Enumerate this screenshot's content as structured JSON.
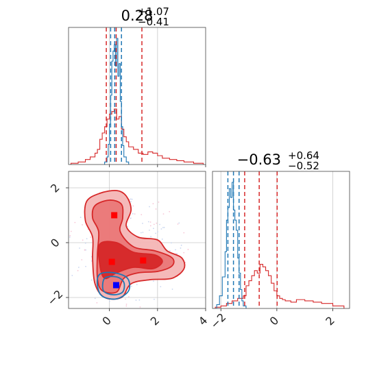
{
  "chart_data": [
    {
      "type": "histogram",
      "panel": "top-left",
      "title": {
        "value": "0.28",
        "plus": "+1.07",
        "minus": "−0.41"
      },
      "xlim": [
        -1.7,
        4.0
      ],
      "quantile_lines_red": [
        -0.13,
        0.28,
        1.35
      ],
      "quantile_lines_blue": [
        0.05,
        0.22,
        0.5
      ],
      "series": [
        {
          "color": "#d62728",
          "x_edges": [
            -1.6,
            -1.3,
            -1.0,
            -0.8,
            -0.6,
            -0.5,
            -0.4,
            -0.3,
            -0.2,
            -0.1,
            0.0,
            0.1,
            0.2,
            0.3,
            0.4,
            0.5,
            0.6,
            0.7,
            0.8,
            1.0,
            1.2,
            1.4,
            1.6,
            1.8,
            2.0,
            2.2,
            2.5,
            2.8,
            3.1,
            3.5,
            3.9
          ],
          "values": [
            0.01,
            0.02,
            0.04,
            0.06,
            0.09,
            0.12,
            0.2,
            0.25,
            0.3,
            0.36,
            0.4,
            0.42,
            0.44,
            0.36,
            0.38,
            0.28,
            0.22,
            0.18,
            0.14,
            0.12,
            0.09,
            0.08,
            0.1,
            0.09,
            0.07,
            0.05,
            0.04,
            0.03,
            0.02,
            0.01
          ]
        },
        {
          "color": "#1f77b4",
          "x_edges": [
            -0.2,
            -0.1,
            -0.05,
            0.0,
            0.05,
            0.1,
            0.15,
            0.2,
            0.25,
            0.3,
            0.35,
            0.4,
            0.45,
            0.5,
            0.55,
            0.6,
            0.7,
            0.8
          ],
          "values": [
            0.02,
            0.06,
            0.16,
            0.32,
            0.55,
            0.82,
            0.9,
            0.95,
            0.78,
            1.0,
            0.7,
            0.8,
            0.5,
            0.3,
            0.15,
            0.06,
            0.02
          ]
        }
      ],
      "x_ticks": [
        0,
        2,
        4
      ]
    },
    {
      "type": "contour",
      "panel": "bottom-left",
      "xlim": [
        -1.7,
        4.0
      ],
      "ylim": [
        -2.4,
        2.6
      ],
      "x_ticks": [
        0,
        2,
        4
      ],
      "y_ticks": [
        -2,
        0,
        2
      ],
      "x_tick_labels": [
        "0",
        "2",
        "4"
      ],
      "y_tick_labels": [
        "−2",
        "0",
        "2"
      ],
      "markers": [
        {
          "color": "#ff0000",
          "x": 0.2,
          "y": 1.0
        },
        {
          "color": "#ff0000",
          "x": 0.1,
          "y": -0.7
        },
        {
          "color": "#ff0000",
          "x": 1.4,
          "y": -0.65
        },
        {
          "color": "#0000ff",
          "x": 0.28,
          "y": -1.55
        }
      ],
      "contours": [
        {
          "color": "#d62728",
          "fill": "#f4b5b5",
          "points": [
            [
              -0.95,
              1.5
            ],
            [
              -0.4,
              1.8
            ],
            [
              0.3,
              1.9
            ],
            [
              0.7,
              1.7
            ],
            [
              0.9,
              1.2
            ],
            [
              0.7,
              0.6
            ],
            [
              1.2,
              0.2
            ],
            [
              2.0,
              0.1
            ],
            [
              2.4,
              -0.3
            ],
            [
              3.0,
              -0.55
            ],
            [
              3.1,
              -0.95
            ],
            [
              2.6,
              -1.3
            ],
            [
              1.7,
              -1.35
            ],
            [
              0.9,
              -1.5
            ],
            [
              0.5,
              -2.0
            ],
            [
              -0.2,
              -2.0
            ],
            [
              -0.6,
              -1.5
            ],
            [
              -0.7,
              -0.6
            ],
            [
              -0.7,
              0.2
            ],
            [
              -1.0,
              0.8
            ]
          ]
        },
        {
          "color": "#d62728",
          "fill": "#ea7777",
          "points": [
            [
              -0.6,
              1.35
            ],
            [
              0.0,
              1.55
            ],
            [
              0.5,
              1.4
            ],
            [
              0.55,
              0.9
            ],
            [
              0.45,
              0.4
            ],
            [
              1.0,
              -0.15
            ],
            [
              1.9,
              -0.3
            ],
            [
              2.6,
              -0.55
            ],
            [
              2.6,
              -0.85
            ],
            [
              2.0,
              -1.05
            ],
            [
              1.2,
              -1.1
            ],
            [
              0.6,
              -1.3
            ],
            [
              0.3,
              -1.8
            ],
            [
              -0.3,
              -1.75
            ],
            [
              -0.5,
              -1.3
            ],
            [
              -0.5,
              -0.4
            ],
            [
              -0.45,
              0.4
            ],
            [
              -0.7,
              0.9
            ]
          ]
        },
        {
          "color": "#d62728",
          "fill": "#d62728",
          "points": [
            [
              -0.4,
              -0.05
            ],
            [
              0.3,
              0.0
            ],
            [
              1.0,
              -0.35
            ],
            [
              1.9,
              -0.45
            ],
            [
              2.2,
              -0.7
            ],
            [
              1.8,
              -0.95
            ],
            [
              1.0,
              -0.9
            ],
            [
              0.3,
              -1.1
            ],
            [
              -0.2,
              -1.3
            ],
            [
              -0.4,
              -0.8
            ]
          ]
        },
        {
          "color": "#1f77b4",
          "fill": "none",
          "points": [
            [
              -0.4,
              -1.15
            ],
            [
              0.2,
              -1.1
            ],
            [
              0.75,
              -1.3
            ],
            [
              0.8,
              -1.75
            ],
            [
              0.3,
              -2.05
            ],
            [
              -0.3,
              -1.95
            ],
            [
              -0.5,
              -1.55
            ]
          ]
        },
        {
          "color": "#1f77b4",
          "fill": "none",
          "points": [
            [
              -0.2,
              -1.3
            ],
            [
              0.3,
              -1.25
            ],
            [
              0.6,
              -1.45
            ],
            [
              0.55,
              -1.8
            ],
            [
              0.15,
              -1.9
            ],
            [
              -0.25,
              -1.75
            ]
          ]
        }
      ]
    },
    {
      "type": "histogram",
      "panel": "bottom-right",
      "title": {
        "value": "−0.63",
        "plus": "+0.64",
        "minus": "−0.52"
      },
      "xlim": [
        -2.3,
        2.6
      ],
      "x_ticks": [
        -2,
        0,
        2
      ],
      "x_tick_labels": [
        "−2",
        "0",
        "2"
      ],
      "quantile_lines_red": [
        -1.15,
        -0.63,
        0.01
      ],
      "quantile_lines_blue": [
        -1.75,
        -1.55,
        -1.35
      ],
      "series": [
        {
          "color": "#d62728",
          "x_edges": [
            -2.2,
            -2.0,
            -1.8,
            -1.6,
            -1.4,
            -1.2,
            -1.1,
            -1.0,
            -0.9,
            -0.8,
            -0.7,
            -0.6,
            -0.5,
            -0.4,
            -0.3,
            -0.2,
            -0.1,
            0.0,
            0.1,
            0.2,
            0.3,
            0.5,
            0.7,
            1.0,
            1.3,
            1.6,
            2.0,
            2.4
          ],
          "values": [
            0.01,
            0.02,
            0.04,
            0.06,
            0.08,
            0.1,
            0.18,
            0.22,
            0.26,
            0.3,
            0.28,
            0.35,
            0.33,
            0.3,
            0.26,
            0.2,
            0.14,
            0.1,
            0.08,
            0.07,
            0.06,
            0.05,
            0.07,
            0.06,
            0.05,
            0.04,
            0.02
          ]
        },
        {
          "color": "#1f77b4",
          "x_edges": [
            -2.15,
            -2.05,
            -1.95,
            -1.85,
            -1.8,
            -1.75,
            -1.7,
            -1.65,
            -1.6,
            -1.55,
            -1.5,
            -1.45,
            -1.4,
            -1.35,
            -1.3,
            -1.25,
            -1.2,
            -1.1
          ],
          "values": [
            0.03,
            0.1,
            0.25,
            0.45,
            0.7,
            0.8,
            0.95,
            0.88,
            1.0,
            0.78,
            0.7,
            0.62,
            0.4,
            0.28,
            0.15,
            0.06,
            0.02
          ]
        }
      ]
    }
  ]
}
